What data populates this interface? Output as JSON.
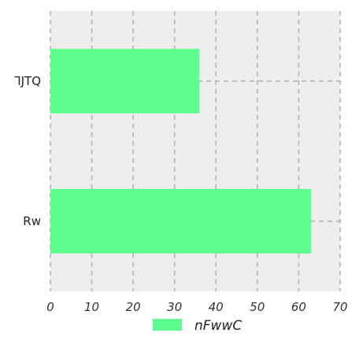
{
  "chart_data": {
    "type": "bar",
    "orientation": "horizontal",
    "categories": [
      "⅂JTQ",
      "Rw"
    ],
    "series": [
      {
        "name": "nFwwC",
        "values": [
          36,
          63
        ]
      }
    ],
    "xlim": [
      0,
      70
    ],
    "xticks": [
      0,
      10,
      20,
      30,
      40,
      50,
      60,
      70
    ],
    "grid": true,
    "legend_placement": "bottom-center",
    "colors": {
      "bar": "#5fff8f",
      "plot_bg": "#eeeeee",
      "grid": "#b0b0b0"
    }
  }
}
